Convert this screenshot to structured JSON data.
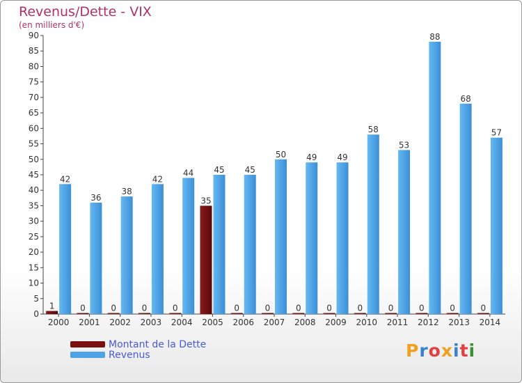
{
  "chart_data": {
    "type": "bar",
    "title": "Revenus/Dette - VIX",
    "subtitle": "(en milliers d'€)",
    "categories": [
      "2000",
      "2001",
      "2002",
      "2003",
      "2004",
      "2005",
      "2006",
      "2007",
      "2008",
      "2009",
      "2010",
      "2011",
      "2012",
      "2013",
      "2014"
    ],
    "series": [
      {
        "name": "Montant de la Dette",
        "color": "#7a0f0f",
        "values": [
          1,
          0,
          0,
          0,
          0,
          35,
          0,
          0,
          0,
          0,
          0,
          0,
          0,
          0,
          0
        ]
      },
      {
        "name": "Revenus",
        "color": "#4ea3e6",
        "values": [
          42,
          36,
          38,
          42,
          44,
          45,
          45,
          50,
          49,
          49,
          58,
          53,
          88,
          68,
          57
        ]
      }
    ],
    "ylim": [
      0,
      90
    ],
    "yticks": [
      0,
      5,
      10,
      15,
      20,
      25,
      30,
      35,
      40,
      45,
      50,
      55,
      60,
      65,
      70,
      75,
      80,
      85,
      90
    ],
    "grid": false,
    "legend": "bottom-left",
    "xlabel": "",
    "ylabel": ""
  },
  "logo": {
    "text": "Proxiti",
    "letters": [
      "P",
      "r",
      "o",
      "x",
      "i",
      "t",
      "i"
    ],
    "colors": [
      "#f0a020",
      "#3a7fd0",
      "#e04040",
      "#f0a020",
      "#3a7fd0",
      "#e04040",
      "#3a9030"
    ]
  }
}
